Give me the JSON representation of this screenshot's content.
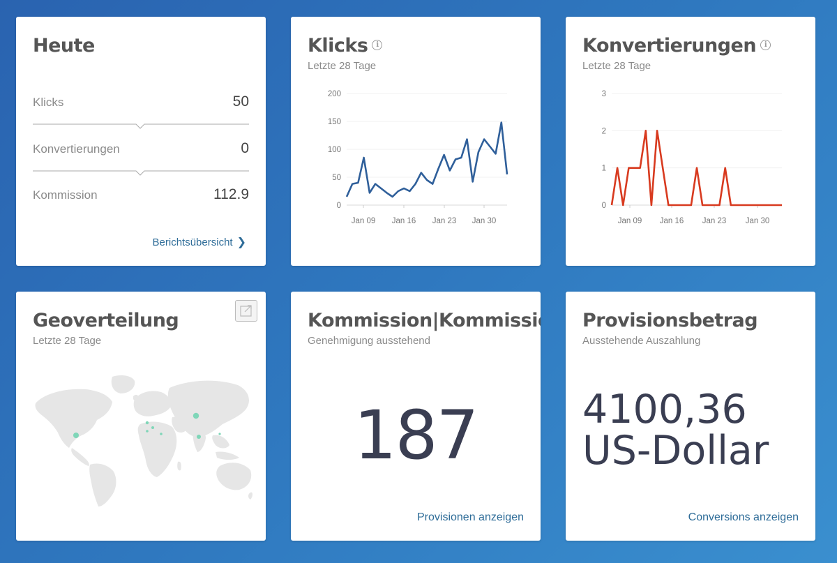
{
  "today": {
    "title": "Heute",
    "rows": [
      {
        "label": "Klicks",
        "value": "50"
      },
      {
        "label": "Konvertierungen",
        "value": "0"
      },
      {
        "label": "Kommission",
        "value": "112.9"
      }
    ],
    "link": "Berichtsübersicht",
    "link_icon": "chevron-right-icon"
  },
  "clicks": {
    "title": "Klicks",
    "subtitle": "Letzte 28 Tage",
    "info_glyph": "i"
  },
  "conversions": {
    "title": "Konvertierungen",
    "subtitle": "Letzte 28 Tage",
    "info_glyph": "i"
  },
  "geo": {
    "title": "Geoverteilung",
    "subtitle": "Letzte 28 Tage",
    "expand_icon": "expand-icon"
  },
  "commission": {
    "title": "Kommission|Kommissionen",
    "subtitle": "Genehmigung ausstehend",
    "value": "187",
    "link": "Provisionen anzeigen"
  },
  "payout": {
    "title": "Provisionsbetrag",
    "subtitle": "Ausstehende Auszahlung",
    "amount_line1": "4100,36",
    "amount_line2": "US-Dollar",
    "link": "Conversions anzeigen"
  },
  "colors": {
    "clicks_line": "#2f5f9a",
    "conversions_line": "#d83a1f",
    "map_land": "#e6e6e6",
    "map_dot": "#7fd6b8",
    "link": "#2e6c98"
  },
  "chart_data": [
    {
      "type": "line",
      "ylim": [
        0,
        200
      ],
      "yticks": [
        "0",
        "50",
        "100",
        "150",
        "200"
      ],
      "xticks": [
        "Jan 09",
        "Jan 16",
        "Jan 23",
        "Jan 30"
      ],
      "series": [
        {
          "values": [
            15,
            38,
            40,
            85,
            22,
            38,
            30,
            22,
            15,
            25,
            30,
            25,
            38,
            58,
            45,
            38,
            65,
            90,
            62,
            82,
            85,
            118,
            42,
            95,
            118,
            105,
            92,
            148,
            55
          ]
        }
      ]
    },
    {
      "type": "line",
      "ylim": [
        0,
        3
      ],
      "yticks": [
        "0",
        "1",
        "2",
        "3"
      ],
      "xticks": [
        "Jan 09",
        "Jan 16",
        "Jan 23",
        "Jan 30"
      ],
      "series": [
        {
          "values": [
            0,
            1,
            0,
            1,
            1,
            1,
            2,
            0,
            2,
            1,
            0,
            0,
            0,
            0,
            0,
            1,
            0,
            0,
            0,
            0,
            1,
            0,
            0,
            0,
            0,
            0,
            0,
            0,
            0,
            0,
            0
          ]
        }
      ]
    }
  ]
}
